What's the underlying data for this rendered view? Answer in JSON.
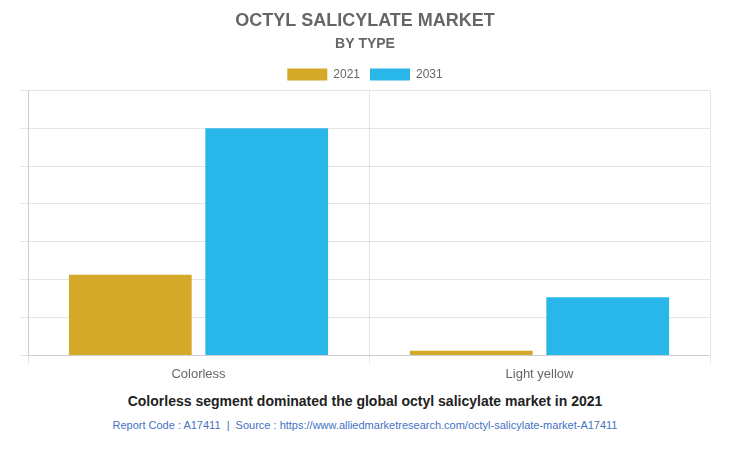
{
  "chart_data": {
    "type": "bar",
    "title": "OCTYL SALICYLATE MARKET",
    "subtitle": "BY TYPE",
    "footer": "Colorless segment dominated the global octyl salicylate market in 2021",
    "source": "Report Code : A17411  |  Source : https://www.alliedmarketresearch.com/octyl-salicylate-market-A17411",
    "categories": [
      "Colorless",
      "Light yellow"
    ],
    "series": [
      {
        "name": "2021",
        "color": "#D4A829",
        "values": [
          3.2,
          0.18
        ]
      },
      {
        "name": "2031",
        "color": "#29B6E8",
        "values": [
          9.0,
          2.3
        ]
      }
    ],
    "ylim": [
      0,
      10.5
    ],
    "yticks": [
      0,
      1.5,
      3,
      4.5,
      6,
      7.5,
      9,
      10.5
    ],
    "grid": true,
    "legend": "top",
    "tick_labels": "x"
  }
}
